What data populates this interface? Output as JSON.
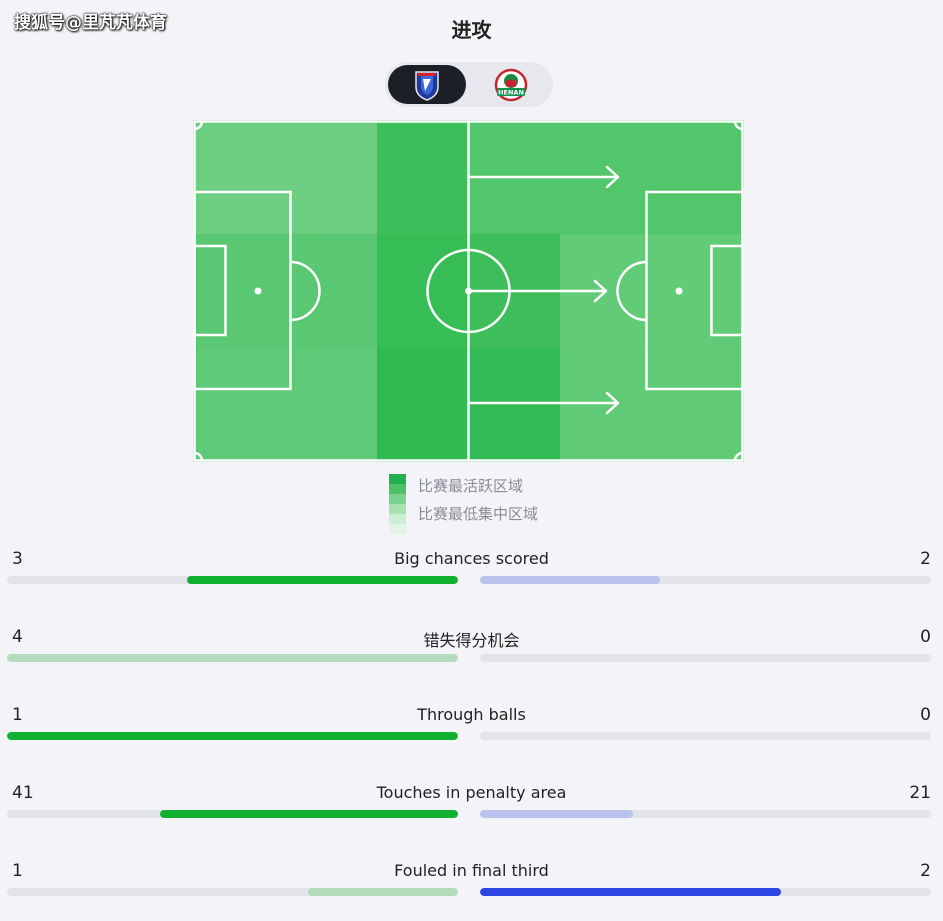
{
  "watermark": "搜狐号@里芃芃体育",
  "title": "进攻",
  "teams": {
    "home": {
      "logo": "shanghai-shenhua-crest",
      "selected": true
    },
    "away": {
      "logo": "henan-crest",
      "label": "HENAN",
      "selected": false
    }
  },
  "heatmap": {
    "grid": [
      [
        "#6dce82",
        "#6dce82",
        "#3cbe5a",
        "#52c66a",
        "#52c66a"
      ],
      [
        "#5ac872",
        "#5ac872",
        "#36bd56",
        "#3dbe5a",
        "#62cb78"
      ],
      [
        "#5ec976",
        "#5ec976",
        "#2fba52",
        "#32bb54",
        "#60ca76"
      ]
    ],
    "arrows": 3
  },
  "legend": {
    "high_label": "比赛最活跃区域",
    "low_label": "比赛最低集中区域",
    "scale": [
      "#22b04a",
      "#4cc265",
      "#7ad28c",
      "#a7e1b2",
      "#cdeed4",
      "#e4f3e7"
    ]
  },
  "stats": [
    {
      "label": "Big chances scored",
      "home": "3",
      "away": "2",
      "home_frac": 0.6,
      "away_frac": 0.4,
      "home_color": "#12b02f",
      "away_color": "#b9c2ec"
    },
    {
      "label": "错失得分机会",
      "home": "4",
      "away": "0",
      "home_frac": 1.0,
      "away_frac": 0.0,
      "home_color": "#b4dcbc",
      "away_color": "#b9c2ec"
    },
    {
      "label": "Through balls",
      "home": "1",
      "away": "0",
      "home_frac": 1.0,
      "away_frac": 0.0,
      "home_color": "#12b02f",
      "away_color": "#b9c2ec"
    },
    {
      "label": "Touches in penalty area",
      "home": "41",
      "away": "21",
      "home_frac": 0.661,
      "away_frac": 0.339,
      "home_color": "#12b02f",
      "away_color": "#b9c2ec"
    },
    {
      "label": "Fouled in final third",
      "home": "1",
      "away": "2",
      "home_frac": 0.333,
      "away_frac": 0.667,
      "home_color": "#b4dcbc",
      "away_color": "#2c46e4"
    }
  ]
}
